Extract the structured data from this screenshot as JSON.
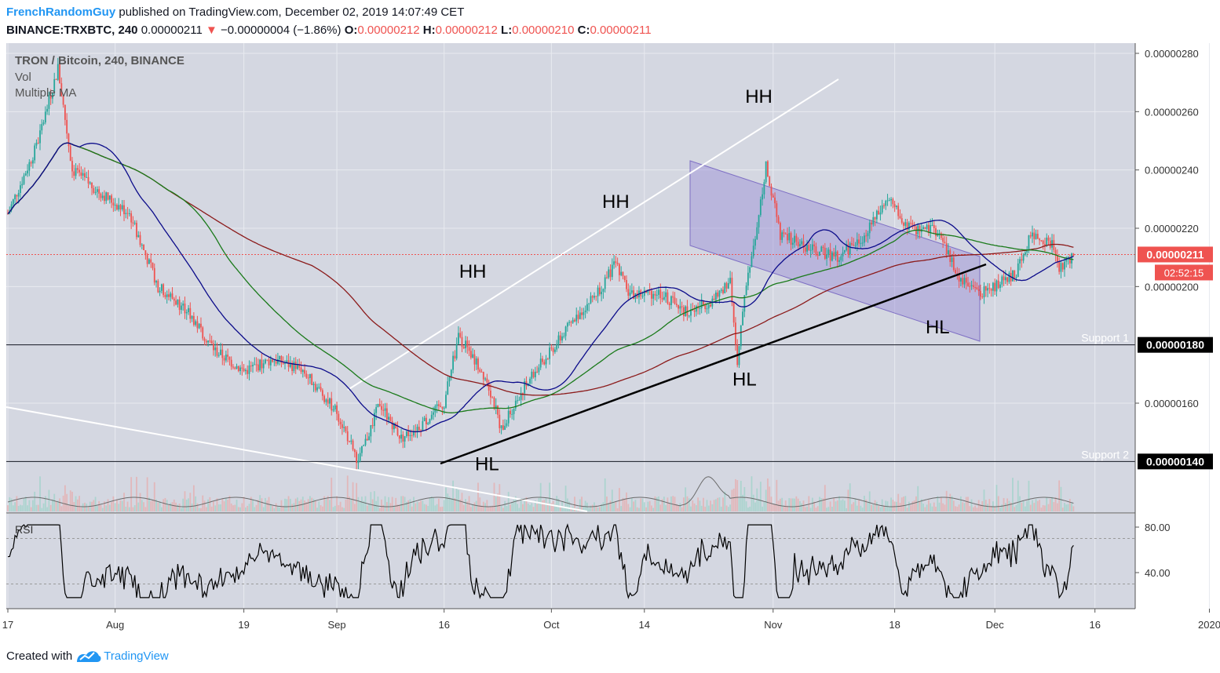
{
  "header": {
    "author": "FrenchRandomGuy",
    "published": "published on TradingView.com, December 02, 2019 14:07:49 CET",
    "symbol": "BINANCE:TRXBTC, 240",
    "last": "0.00000211",
    "change": "−0.00000004 (−1.86%)",
    "o_label": "O:",
    "o_value": "0.00000212",
    "h_label": "H:",
    "h_value": "0.00000212",
    "l_label": "L:",
    "l_value": "0.00000210",
    "c_label": "C:",
    "c_value": "0.00000211"
  },
  "legend": {
    "title": "TRON / Bitcoin, 240, BINANCE",
    "vol": "Vol",
    "ma": "Multiple MA"
  },
  "colors": {
    "background": "#d4d7e1",
    "up": "#26a69a",
    "down": "#ef5350",
    "ma_fast": "#0b0b8a",
    "ma_mid": "#1a7a1a",
    "ma_slow": "#8b1a1a",
    "channel": "#9a8bd8",
    "price_tag": "#ef5350"
  },
  "chart_data": {
    "type": "candlestick",
    "x_ticks": [
      "17",
      "Aug",
      "19",
      "Sep",
      "16",
      "Oct",
      "14",
      "Nov",
      "18",
      "Dec",
      "16",
      "2020"
    ],
    "y_ticks": [
      "0.00000280",
      "0.00000260",
      "0.00000240",
      "0.00000220",
      "0.00000200",
      "0.00000160"
    ],
    "ylim": [
      1.22e-06,
      2.84e-06
    ],
    "current_price": "0.00000211",
    "countdown": "02:52:15",
    "support_levels": [
      {
        "label": "Support 1",
        "value": 1.8e-06,
        "text": "0.00000180"
      },
      {
        "label": "Support 2",
        "value": 1.4e-06,
        "text": "0.00000140"
      }
    ],
    "annotations": [
      {
        "text": "HH",
        "x": "Sep 20",
        "y": 2.03e-06
      },
      {
        "text": "HH",
        "x": "Oct 10",
        "y": 2.27e-06
      },
      {
        "text": "HH",
        "x": "Oct 30",
        "y": 2.63e-06
      },
      {
        "text": "HL",
        "x": "Sep 22",
        "y": 1.37e-06
      },
      {
        "text": "HL",
        "x": "Oct 28",
        "y": 1.66e-06
      },
      {
        "text": "HL",
        "x": "Nov 24",
        "y": 1.84e-06
      }
    ],
    "rsi": {
      "label": "RSI",
      "y_ticks": [
        "80.00",
        "40.00"
      ],
      "upper": 70,
      "lower": 30
    }
  },
  "footer": {
    "created": "Created with",
    "brand": "TradingView"
  }
}
